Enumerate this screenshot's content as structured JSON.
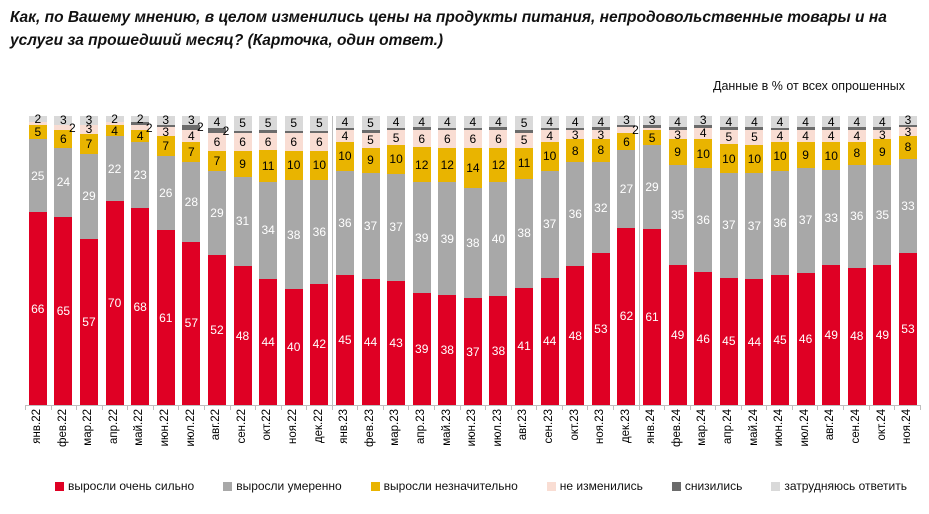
{
  "header": {
    "title": "Как, по Вашему мнению, в целом изменились цены на продукты питания, непродовольственные товары и на услуги за прошедший месяц? (Карточка, один ответ.)",
    "subtitle": "Данные в % от всех опрошенных"
  },
  "chart_data": {
    "type": "bar",
    "stacked": true,
    "title": "Как, по Вашему мнению, в целом изменились цены на продукты питания, непродовольственные товары и на услуги за прошедший месяц? (Карточка, один ответ.)",
    "note": "Данные в % от всех опрошенных",
    "ylim": [
      0,
      100
    ],
    "grid": false,
    "legend_position": "bottom",
    "categories": [
      "янв.22",
      "фев.22",
      "мар.22",
      "апр.22",
      "май.22",
      "июн.22",
      "июл.22",
      "авг.22",
      "сен.22",
      "окт.22",
      "ноя.22",
      "дек.22",
      "янв.23",
      "фев.23",
      "мар.23",
      "апр.23",
      "май.23",
      "июн.23",
      "июл.23",
      "авг.23",
      "сен.23",
      "окт.23",
      "ноя.23",
      "дек.23",
      "янв.24",
      "фев.24",
      "мар.24",
      "апр.24",
      "май.24",
      "июн.24",
      "июл.24",
      "авг.24",
      "сен.24",
      "окт.24",
      "ноя.24"
    ],
    "series": [
      {
        "name": "выросли очень сильно",
        "color": "#df0024",
        "values": [
          66,
          65,
          57,
          70,
          68,
          61,
          57,
          52,
          48,
          44,
          40,
          42,
          45,
          44,
          43,
          39,
          38,
          37,
          38,
          41,
          44,
          48,
          53,
          62,
          61,
          49,
          46,
          45,
          44,
          45,
          46,
          49,
          48,
          49,
          53
        ]
      },
      {
        "name": "выросли умеренно",
        "color": "#a8a8a8",
        "values": [
          25,
          24,
          29,
          22,
          23,
          26,
          28,
          29,
          31,
          34,
          38,
          36,
          36,
          37,
          37,
          39,
          39,
          38,
          40,
          38,
          37,
          36,
          32,
          27,
          29,
          35,
          36,
          37,
          37,
          36,
          37,
          33,
          36,
          35,
          33
        ]
      },
      {
        "name": "выросли незначительно",
        "color": "#e9b400",
        "values": [
          5,
          6,
          7,
          4,
          4,
          7,
          7,
          7,
          9,
          11,
          10,
          10,
          10,
          9,
          10,
          12,
          12,
          14,
          12,
          11,
          10,
          8,
          8,
          6,
          5,
          9,
          10,
          10,
          10,
          10,
          9,
          10,
          8,
          9,
          8
        ]
      },
      {
        "name": "не изменились",
        "color": "#f9ddd3",
        "values": [
          1,
          2,
          3,
          1,
          2,
          3,
          4,
          6,
          6,
          6,
          6,
          6,
          4,
          5,
          5,
          6,
          6,
          6,
          6,
          5,
          4,
          3,
          3,
          2,
          1,
          3,
          4,
          5,
          5,
          4,
          4,
          4,
          4,
          3,
          3
        ]
      },
      {
        "name": "снизились",
        "color": "#6b6b6b",
        "values": [
          0,
          0,
          0,
          0,
          1,
          1,
          2,
          2,
          1,
          1,
          1,
          1,
          1,
          1,
          1,
          1,
          1,
          1,
          1,
          1,
          1,
          1,
          1,
          1,
          1,
          1,
          1,
          1,
          1,
          1,
          1,
          1,
          1,
          1,
          1
        ]
      },
      {
        "name": "затрудняюсь ответить",
        "color": "#d9d9d9",
        "values": [
          2,
          3,
          3,
          2,
          2,
          3,
          3,
          4,
          5,
          5,
          5,
          5,
          4,
          5,
          4,
          4,
          4,
          4,
          4,
          5,
          4,
          4,
          4,
          3,
          3,
          4,
          3,
          4,
          4,
          4,
          4,
          4,
          4,
          4,
          3
        ]
      }
    ],
    "year_separators_after": [
      "дек.22",
      "дек.23"
    ]
  }
}
